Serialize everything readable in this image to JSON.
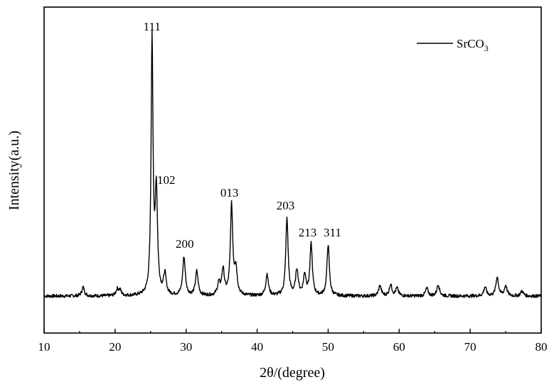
{
  "chart_data": {
    "type": "line",
    "xlabel": "2θ/(degree)",
    "ylabel": "Intensity(a.u.)",
    "xlim": [
      10,
      80
    ],
    "xticks": [
      10,
      20,
      30,
      40,
      50,
      60,
      70,
      80
    ],
    "y_ticks_shown": false,
    "grid": false,
    "legend": {
      "placement": "top-right",
      "entries": [
        {
          "base": "SrCO",
          "subscript": "3"
        }
      ]
    },
    "series": [
      {
        "name": "SrCO3",
        "color": "#000000",
        "baseline": 0,
        "peaks": [
          {
            "x": 15.5,
            "y": 3.5
          },
          {
            "x": 20.3,
            "y": 2.5
          },
          {
            "x": 20.7,
            "y": 2.0
          },
          {
            "x": 25.2,
            "y": 100
          },
          {
            "x": 25.8,
            "y": 40
          },
          {
            "x": 27.0,
            "y": 8
          },
          {
            "x": 29.7,
            "y": 15
          },
          {
            "x": 31.5,
            "y": 9.5
          },
          {
            "x": 34.6,
            "y": 4.5
          },
          {
            "x": 35.2,
            "y": 10
          },
          {
            "x": 36.4,
            "y": 35
          },
          {
            "x": 37.0,
            "y": 10
          },
          {
            "x": 41.4,
            "y": 8.5
          },
          {
            "x": 44.2,
            "y": 30
          },
          {
            "x": 45.6,
            "y": 10
          },
          {
            "x": 46.7,
            "y": 8
          },
          {
            "x": 47.6,
            "y": 20
          },
          {
            "x": 50.0,
            "y": 20
          },
          {
            "x": 57.3,
            "y": 4
          },
          {
            "x": 58.8,
            "y": 4.5
          },
          {
            "x": 59.7,
            "y": 3
          },
          {
            "x": 63.9,
            "y": 3
          },
          {
            "x": 65.5,
            "y": 4.5
          },
          {
            "x": 72.1,
            "y": 3.5
          },
          {
            "x": 73.8,
            "y": 7.5
          },
          {
            "x": 75.0,
            "y": 4
          },
          {
            "x": 77.3,
            "y": 2
          }
        ]
      }
    ],
    "annotations": [
      {
        "text": "111",
        "x": 25.2,
        "y": 100
      },
      {
        "text": "102",
        "x": 25.8,
        "y": 40
      },
      {
        "text": "200",
        "x": 29.7,
        "y": 15
      },
      {
        "text": "013",
        "x": 36.4,
        "y": 35
      },
      {
        "text": "203",
        "x": 44.2,
        "y": 30
      },
      {
        "text": "213",
        "x": 47.6,
        "y": 20
      },
      {
        "text": "311",
        "x": 50.0,
        "y": 20
      }
    ]
  }
}
